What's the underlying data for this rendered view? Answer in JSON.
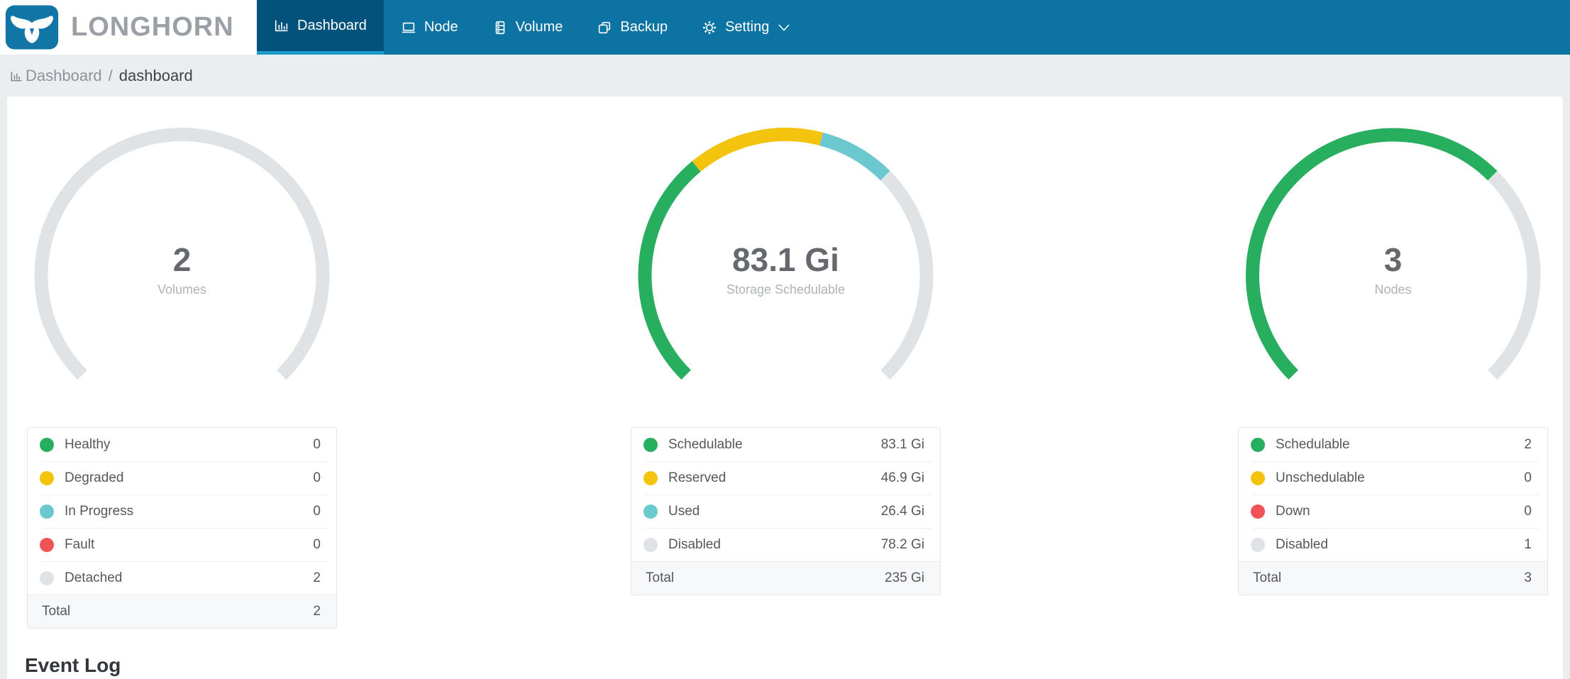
{
  "brand": {
    "name": "LONGHORN"
  },
  "nav": {
    "items": [
      {
        "label": "Dashboard",
        "icon": "dashboard-icon",
        "active": true
      },
      {
        "label": "Node",
        "icon": "node-icon",
        "active": false
      },
      {
        "label": "Volume",
        "icon": "volume-icon",
        "active": false
      },
      {
        "label": "Backup",
        "icon": "backup-icon",
        "active": false
      },
      {
        "label": "Setting",
        "icon": "setting-icon",
        "active": false,
        "has_submenu": true
      }
    ]
  },
  "breadcrumb": {
    "icon": "bar-chart-icon",
    "section": "Dashboard",
    "separator": "/",
    "page": "dashboard"
  },
  "colors": {
    "header_bg": "#0c73a3",
    "header_active_bg": "#03527c",
    "active_indicator": "#1d9cc9",
    "logo_bg": "#1176a6",
    "brand_text": "#9aa0a5",
    "healthy_green": "#27ae5f",
    "warning_yellow": "#f4c30d",
    "progress_teal": "#6cc8cf",
    "fault_red": "#f05355",
    "inactive_gray": "#dfe3e6"
  },
  "chart_data": [
    {
      "type": "gauge",
      "title": "Volumes",
      "center_value": "2",
      "center_label": "Volumes",
      "start_angle": 225,
      "end_angle": -45,
      "segments": [
        {
          "label": "Healthy",
          "value": 0,
          "display": "0",
          "color": "#27ae5f"
        },
        {
          "label": "Degraded",
          "value": 0,
          "display": "0",
          "color": "#f4c30d"
        },
        {
          "label": "In Progress",
          "value": 0,
          "display": "0",
          "color": "#6cc8cf"
        },
        {
          "label": "Fault",
          "value": 0,
          "display": "0",
          "color": "#f05355"
        },
        {
          "label": "Detached",
          "value": 2,
          "display": "2",
          "color": "#dfe3e6"
        }
      ],
      "total": {
        "label": "Total",
        "display": "2"
      }
    },
    {
      "type": "gauge",
      "title": "Storage Schedulable",
      "center_value": "83.1 Gi",
      "center_label": "Storage Schedulable",
      "start_angle": 225,
      "end_angle": -45,
      "segments": [
        {
          "label": "Schedulable",
          "value": 83.1,
          "display": "83.1 Gi",
          "color": "#27ae5f"
        },
        {
          "label": "Reserved",
          "value": 46.9,
          "display": "46.9 Gi",
          "color": "#f4c30d"
        },
        {
          "label": "Used",
          "value": 26.4,
          "display": "26.4 Gi",
          "color": "#6cc8cf"
        },
        {
          "label": "Disabled",
          "value": 78.2,
          "display": "78.2 Gi",
          "color": "#dfe3e6"
        }
      ],
      "total": {
        "label": "Total",
        "display": "235 Gi"
      }
    },
    {
      "type": "gauge",
      "title": "Nodes",
      "center_value": "3",
      "center_label": "Nodes",
      "start_angle": 225,
      "end_angle": -45,
      "segments": [
        {
          "label": "Schedulable",
          "value": 2,
          "display": "2",
          "color": "#27ae5f"
        },
        {
          "label": "Unschedulable",
          "value": 0,
          "display": "0",
          "color": "#f4c30d"
        },
        {
          "label": "Down",
          "value": 0,
          "display": "0",
          "color": "#f05355"
        },
        {
          "label": "Disabled",
          "value": 1,
          "display": "1",
          "color": "#dfe3e6"
        }
      ],
      "total": {
        "label": "Total",
        "display": "3"
      }
    }
  ],
  "event_log": {
    "title": "Event Log"
  }
}
